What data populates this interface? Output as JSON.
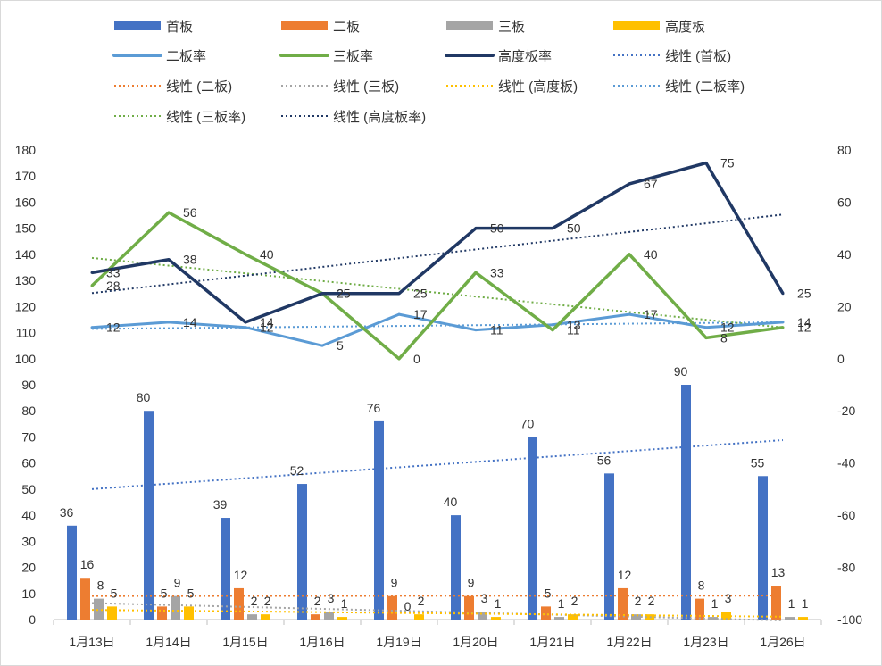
{
  "chart_data": {
    "type": "bar",
    "categories": [
      "1月13日",
      "1月14日",
      "1月15日",
      "1月16日",
      "1月19日",
      "1月20日",
      "1月21日",
      "1月22日",
      "1月23日",
      "1月26日"
    ],
    "y_left": {
      "min": 0,
      "max": 180,
      "step": 10
    },
    "y_right": {
      "min": -100,
      "max": 80,
      "step": 20
    },
    "grid": false,
    "legend_position": "top",
    "bar_series": [
      {
        "name": "首板",
        "color": "#4472C4",
        "values": [
          36,
          80,
          39,
          52,
          76,
          40,
          70,
          56,
          90,
          55
        ]
      },
      {
        "name": "二板",
        "color": "#ED7D31",
        "values": [
          16,
          5,
          12,
          2,
          9,
          9,
          5,
          12,
          8,
          13
        ]
      },
      {
        "name": "三板",
        "color": "#A5A5A5",
        "values": [
          8,
          9,
          2,
          3,
          0,
          3,
          1,
          2,
          1,
          1
        ]
      },
      {
        "name": "高度板",
        "color": "#FFC000",
        "values": [
          5,
          5,
          2,
          1,
          2,
          1,
          2,
          2,
          3,
          1
        ]
      }
    ],
    "line_series": [
      {
        "name": "二板率",
        "color": "#5B9BD5",
        "values": [
          12,
          14,
          12,
          5,
          17,
          11,
          13,
          17,
          12,
          14
        ]
      },
      {
        "name": "三板率",
        "color": "#70AD47",
        "values": [
          28,
          56,
          40,
          25,
          0,
          33,
          11,
          40,
          8,
          12
        ]
      },
      {
        "name": "高度板率",
        "color": "#203864",
        "values": [
          33,
          38,
          14,
          25,
          25,
          50,
          50,
          67,
          75,
          25
        ]
      }
    ],
    "trend_series": [
      {
        "name": "线性 (首板)",
        "color": "#4472C4"
      },
      {
        "name": "线性 (二板)",
        "color": "#ED7D31"
      },
      {
        "name": "线性 (三板)",
        "color": "#A5A5A5"
      },
      {
        "name": "线性 (高度板)",
        "color": "#FFC000"
      },
      {
        "name": "线性 (二板率)",
        "color": "#5B9BD5"
      },
      {
        "name": "线性 (三板率)",
        "color": "#70AD47"
      },
      {
        "name": "线性 (高度板率)",
        "color": "#203864"
      }
    ]
  }
}
